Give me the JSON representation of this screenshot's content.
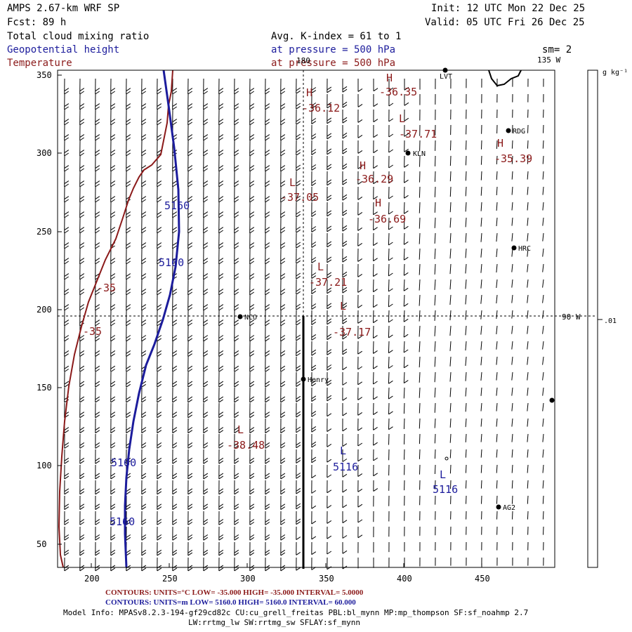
{
  "header": {
    "model": "AMPS 2.67-km WRF SP",
    "fcst": "Fcst:    89 h",
    "init": "Init: 12 UTC Mon 22 Dec 25",
    "valid": "Valid: 05 UTC Fri 26 Dec 25",
    "field1": "Total cloud mixing ratio",
    "field2": "Geopotential height",
    "field3": "Temperature",
    "avg": "Avg. K-index =  61 to   1",
    "pressure1": "at pressure =  500 hPa",
    "pressure2": "at pressure =  500 hPa",
    "sm": "sm= 2"
  },
  "map": {
    "x_ticks": [
      "200",
      "250",
      "300",
      "350",
      "400",
      "450"
    ],
    "y_ticks": [
      "350",
      "300",
      "250",
      "200",
      "150",
      "100",
      "50"
    ],
    "lon_labels": {
      "top": "180",
      "top_right": "135 W",
      "right": "90 W"
    },
    "stations": [
      {
        "name": "LVT"
      },
      {
        "name": "RDG"
      },
      {
        "name": "KLN"
      },
      {
        "name": "HRC"
      },
      {
        "name": "NCO"
      },
      {
        "name": "Henry"
      },
      {
        "name": "AG2"
      }
    ],
    "temp_labels": [
      {
        "sym": "H",
        "val": "-36.35"
      },
      {
        "sym": "H",
        "val": "-36.12"
      },
      {
        "sym": "L",
        "val": "-37.71"
      },
      {
        "sym": "H",
        "val": "-35.39"
      },
      {
        "sym": "H",
        "val": "-36.29"
      },
      {
        "sym": "L",
        "val": "-37.05"
      },
      {
        "sym": "H",
        "val": "-36.69"
      },
      {
        "sym": "L",
        "val": "-37.21"
      },
      {
        "sym": "L",
        "val": "-37.17"
      },
      {
        "sym": "L",
        "val": "-38.48"
      },
      {
        "sym": "",
        "val": "-35"
      },
      {
        "sym": "",
        "val": "-35"
      }
    ],
    "height_labels": [
      {
        "sym": "",
        "val": "5160"
      },
      {
        "sym": "",
        "val": "5160"
      },
      {
        "sym": "",
        "val": "5160"
      },
      {
        "sym": "",
        "val": "5160"
      },
      {
        "sym": "L",
        "val": "5116"
      },
      {
        "sym": "L",
        "val": "5116"
      }
    ],
    "colorbar": {
      "unit": "g kg⁻¹",
      "tick": ".01"
    }
  },
  "footer": {
    "line1_red": "CONTOURS:  UNITS=°C  LOW=  -35.000        HIGH=  -35.000        INTERVAL=    5.0000",
    "line2_blue": "CONTOURS:  UNITS=m  LOW=   5160.0        HIGH=   5160.0        INTERVAL=   60.000",
    "info1": "Model Info: MPASv8.2.3-194-gf29cd82c CU:cu_grell_freitas PBL:bl_mynn MP:mp_thompson SF:sf_noahmp 2.7",
    "info2": "LW:rrtmg_lw SW:rrtmg_sw SFLAY:sf_mynn"
  },
  "colors": {
    "height": "#1c1c9c",
    "temperature": "#8b1a1a",
    "barbs": "#000000"
  }
}
